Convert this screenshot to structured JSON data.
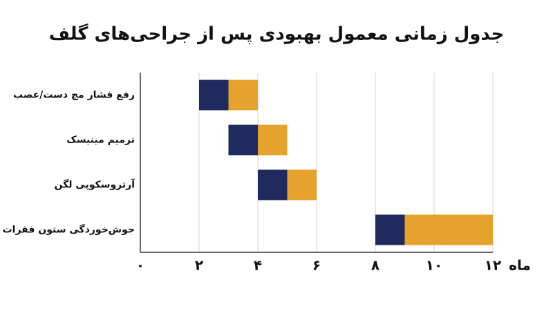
{
  "chart_data": {
    "type": "floating-bar",
    "title": "جدول زمانی معمول بهبودی پس از جراحی‌های گلف",
    "categories": [
      "رفع فشار مچ دست/عصب",
      "ترمیم مینیسک",
      "آرتروسکوپی لگن",
      "جوش‌خوردگی ستون فقرات"
    ],
    "starts": [
      2,
      3,
      4,
      8
    ],
    "series": [
      {
        "color": "#1f2b5e",
        "values": [
          1,
          1,
          1,
          1
        ]
      },
      {
        "color": "#e5a22c",
        "values": [
          1,
          1,
          1,
          3
        ]
      }
    ],
    "x_label": "ماه",
    "xlim": [
      0,
      12
    ],
    "xticks": [
      {
        "value": 0,
        "label": "۰"
      },
      {
        "value": 2,
        "label": "۲"
      },
      {
        "value": 4,
        "label": "۴"
      },
      {
        "value": 6,
        "label": "۶"
      },
      {
        "value": 8,
        "label": "۸"
      },
      {
        "value": 10,
        "label": "۱۰"
      },
      {
        "value": 12,
        "label": "۱۲"
      }
    ],
    "grid": true
  }
}
